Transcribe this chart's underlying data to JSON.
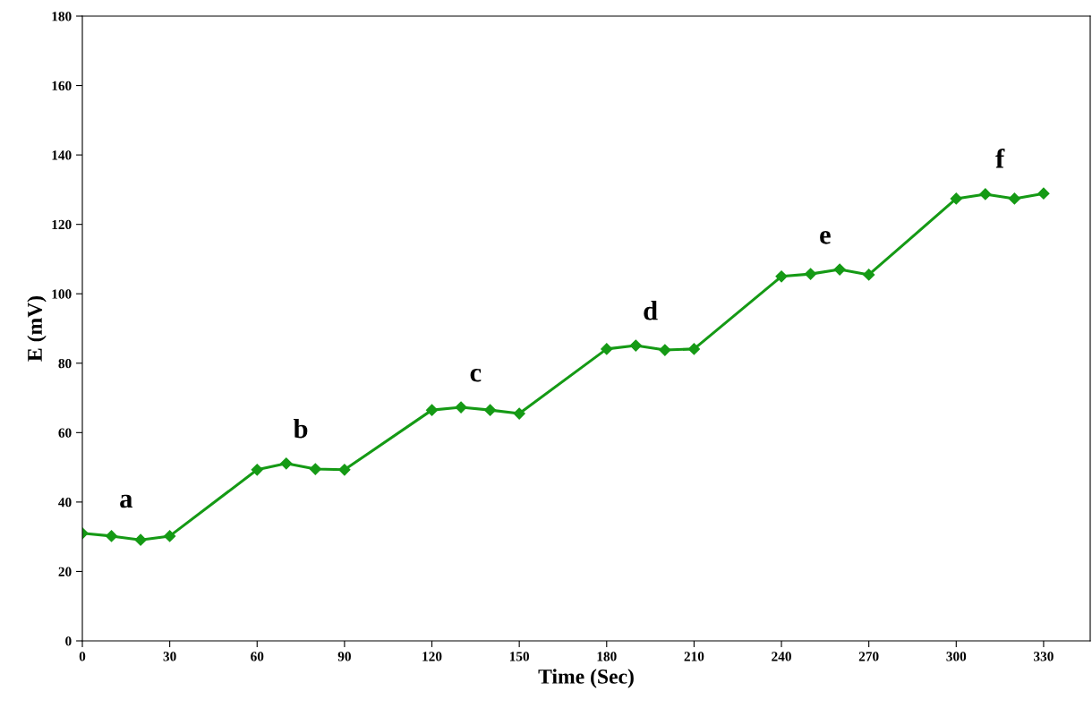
{
  "chart_data": {
    "type": "line",
    "xlabel": "Time (Sec)",
    "ylabel": "E (mV)",
    "x": [
      0,
      10,
      20,
      30,
      60,
      70,
      80,
      90,
      120,
      130,
      140,
      150,
      180,
      190,
      200,
      210,
      240,
      250,
      260,
      270,
      300,
      310,
      320,
      330
    ],
    "series": [
      {
        "color": "#159a15",
        "values": [
          31,
          30.2,
          29.1,
          30.2,
          49.3,
          51.1,
          49.5,
          49.3,
          66.5,
          67.3,
          66.5,
          65.5,
          84.1,
          85.1,
          83.8,
          84.1,
          105,
          105.7,
          107,
          105.5,
          127.4,
          128.7,
          127.4,
          128.9
        ]
      }
    ],
    "xlim": [
      0,
      346
    ],
    "xticks": [
      0,
      30,
      60,
      90,
      120,
      150,
      180,
      210,
      240,
      270,
      300,
      330
    ],
    "ylim": [
      0,
      180
    ],
    "yticks": [
      0,
      20,
      40,
      60,
      80,
      100,
      120,
      140,
      160,
      180
    ],
    "marker": "diamond",
    "line_style": "solid",
    "grid": false,
    "legend": false,
    "annotations": [
      "a",
      "b",
      "c",
      "d",
      "e",
      "f"
    ]
  }
}
